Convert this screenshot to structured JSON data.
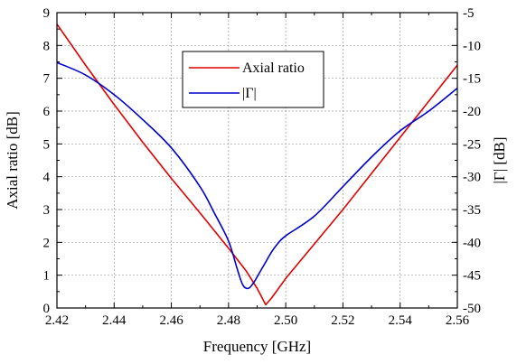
{
  "chart_data": {
    "type": "line",
    "xlabel": "Frequency [GHz]",
    "ylabel_left": "Axial ratio [dB]",
    "ylabel_right": "|Γ| [dB]",
    "xlim": [
      2.42,
      2.56
    ],
    "ylim_left": [
      0,
      9
    ],
    "ylim_right": [
      -50,
      -5
    ],
    "x_ticks": [
      "2.42",
      "2.44",
      "2.46",
      "2.48",
      "2.50",
      "2.52",
      "2.54",
      "2.56"
    ],
    "y_ticks_left": [
      "0",
      "1",
      "2",
      "3",
      "4",
      "5",
      "6",
      "7",
      "8",
      "9"
    ],
    "y_ticks_right": [
      "-50",
      "-45",
      "-40",
      "-35",
      "-30",
      "-25",
      "-20",
      "-15",
      "-10",
      "-5"
    ],
    "grid": true,
    "legend_position": "top-center",
    "series": [
      {
        "name": "Axial ratio",
        "axis": "left",
        "color": "#e00000",
        "x": [
          2.42,
          2.43,
          2.44,
          2.45,
          2.46,
          2.47,
          2.48,
          2.486,
          2.49,
          2.493,
          2.495,
          2.5,
          2.51,
          2.52,
          2.53,
          2.54,
          2.55,
          2.56
        ],
        "y": [
          8.65,
          7.4,
          6.2,
          5.05,
          3.95,
          2.9,
          1.82,
          1.15,
          0.6,
          0.1,
          0.3,
          0.9,
          1.95,
          3.0,
          4.1,
          5.2,
          6.3,
          7.4
        ]
      },
      {
        "name": "|Γ|",
        "axis": "right",
        "color": "#0000cc",
        "x": [
          2.42,
          2.43,
          2.44,
          2.45,
          2.46,
          2.47,
          2.475,
          2.48,
          2.483,
          2.485,
          2.487,
          2.489,
          2.491,
          2.493,
          2.495,
          2.497,
          2.5,
          2.51,
          2.52,
          2.53,
          2.54,
          2.55,
          2.56
        ],
        "y": [
          -12.6,
          -14.5,
          -17.5,
          -21.3,
          -25.6,
          -31.5,
          -35.5,
          -39.8,
          -44.0,
          -46.5,
          -47.0,
          -46.0,
          -44.5,
          -43.0,
          -41.5,
          -40.3,
          -39.0,
          -36.0,
          -31.5,
          -27.0,
          -23.0,
          -20.0,
          -16.5
        ]
      }
    ]
  }
}
